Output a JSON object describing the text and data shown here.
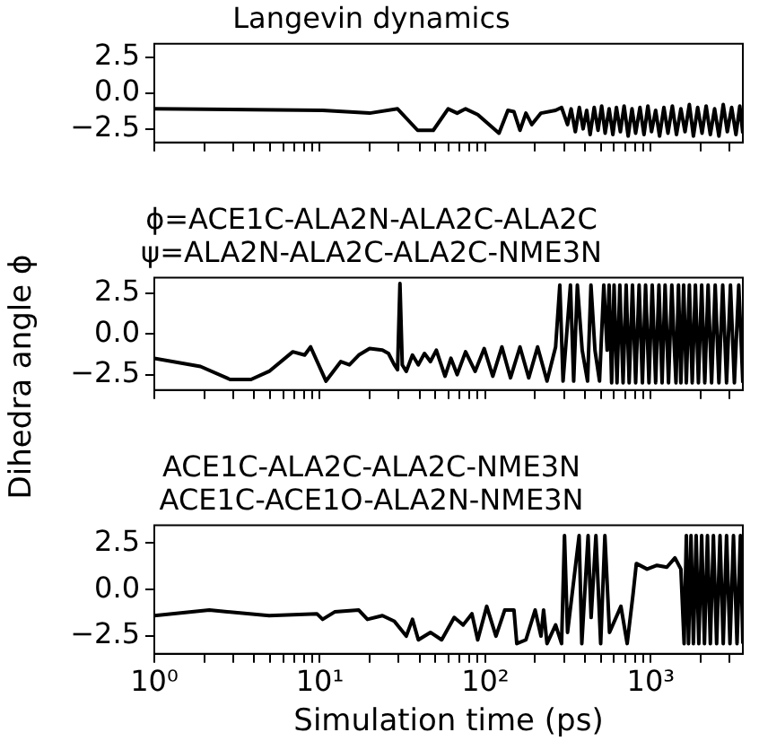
{
  "chart_data": [
    {
      "type": "line",
      "title": "Langevin dynamics",
      "tick_labels": "y",
      "grid": false,
      "legend": false,
      "marker": "none",
      "line_style": "solid",
      "log": "x",
      "xlim": [
        1,
        3600
      ],
      "ylim": [
        -3.45,
        3.45
      ],
      "xticks": [
        {
          "value": 1,
          "label": null
        },
        {
          "value": 2,
          "label": null
        },
        {
          "value": 3,
          "label": null
        },
        {
          "value": 4,
          "label": null
        },
        {
          "value": 5,
          "label": null
        },
        {
          "value": 6,
          "label": null
        },
        {
          "value": 7,
          "label": null
        },
        {
          "value": 8,
          "label": null
        },
        {
          "value": 9,
          "label": null
        },
        {
          "value": 10,
          "label": null
        },
        {
          "value": 20,
          "label": null
        },
        {
          "value": 30,
          "label": null
        },
        {
          "value": 40,
          "label": null
        },
        {
          "value": 50,
          "label": null
        },
        {
          "value": 60,
          "label": null
        },
        {
          "value": 70,
          "label": null
        },
        {
          "value": 80,
          "label": null
        },
        {
          "value": 90,
          "label": null
        },
        {
          "value": 100,
          "label": null
        },
        {
          "value": 200,
          "label": null
        },
        {
          "value": 300,
          "label": null
        },
        {
          "value": 400,
          "label": null
        },
        {
          "value": 500,
          "label": null
        },
        {
          "value": 600,
          "label": null
        },
        {
          "value": 700,
          "label": null
        },
        {
          "value": 800,
          "label": null
        },
        {
          "value": 900,
          "label": null
        },
        {
          "value": 1000,
          "label": null
        },
        {
          "value": 2000,
          "label": null
        },
        {
          "value": 3000,
          "label": null
        }
      ],
      "yticks": [
        {
          "value": -2.5,
          "label": "−2.5"
        },
        {
          "value": 0,
          "label": "0.0"
        },
        {
          "value": 2.5,
          "label": "2.5"
        }
      ],
      "series": [
        {
          "color": "#000000",
          "x": [
            1,
            10.4,
            20,
            29.5,
            39,
            48.5,
            59.6,
            67.6,
            76,
            90,
            121,
            137,
            149,
            162,
            176,
            191,
            217,
            266,
            289,
            314,
            330,
            350,
            370,
            390,
            410,
            430,
            455,
            480,
            505,
            530,
            560,
            590,
            620,
            655,
            690,
            730,
            770,
            810,
            860,
            910,
            960,
            1010,
            1070,
            1130,
            1200,
            1270,
            1350,
            1430,
            1520,
            1610,
            1710,
            1810,
            1920,
            2040,
            2160,
            2290,
            2430,
            2580,
            2740,
            2900,
            3080,
            3270,
            3450,
            3600
          ],
          "values": [
            -1.1,
            -1.2,
            -1.4,
            -1.1,
            -2.6,
            -2.6,
            -1.1,
            -1.4,
            -1.1,
            -1.5,
            -2.8,
            -1.2,
            -1.3,
            -2.6,
            -1.4,
            -2.2,
            -1.4,
            -1.2,
            -1.0,
            -2.2,
            -1.1,
            -2.7,
            -1.0,
            -2.5,
            -1.2,
            -2.9,
            -1.0,
            -2.6,
            -0.9,
            -2.8,
            -1.1,
            -2.9,
            -1.0,
            -2.7,
            -0.9,
            -3.0,
            -1.1,
            -2.8,
            -1.0,
            -2.9,
            -0.9,
            -2.7,
            -1.2,
            -3.0,
            -1.0,
            -2.8,
            -0.9,
            -2.9,
            -1.1,
            -2.7,
            -0.8,
            -3.0,
            -1.0,
            -2.8,
            -0.9,
            -2.9,
            -1.1,
            -3.0,
            -0.8,
            -2.7,
            -1.0,
            -2.9,
            -0.9,
            -2.8
          ]
        }
      ]
    },
    {
      "type": "line",
      "title": "ϕ=ACE1C-ALA2N-ALA2C-ALA2C\nψ=ALA2N-ALA2C-ALA2C-NME3N",
      "ylabel": "Dihedra angle ϕ",
      "tick_labels": "y",
      "grid": false,
      "legend": false,
      "marker": "none",
      "line_style": "solid",
      "log": "x",
      "xlim": [
        1,
        3600
      ],
      "ylim": [
        -3.45,
        3.45
      ],
      "xticks": [
        {
          "value": 1,
          "label": null
        },
        {
          "value": 2,
          "label": null
        },
        {
          "value": 3,
          "label": null
        },
        {
          "value": 4,
          "label": null
        },
        {
          "value": 5,
          "label": null
        },
        {
          "value": 6,
          "label": null
        },
        {
          "value": 7,
          "label": null
        },
        {
          "value": 8,
          "label": null
        },
        {
          "value": 9,
          "label": null
        },
        {
          "value": 10,
          "label": null
        },
        {
          "value": 20,
          "label": null
        },
        {
          "value": 30,
          "label": null
        },
        {
          "value": 40,
          "label": null
        },
        {
          "value": 50,
          "label": null
        },
        {
          "value": 60,
          "label": null
        },
        {
          "value": 70,
          "label": null
        },
        {
          "value": 80,
          "label": null
        },
        {
          "value": 90,
          "label": null
        },
        {
          "value": 100,
          "label": null
        },
        {
          "value": 200,
          "label": null
        },
        {
          "value": 300,
          "label": null
        },
        {
          "value": 400,
          "label": null
        },
        {
          "value": 500,
          "label": null
        },
        {
          "value": 600,
          "label": null
        },
        {
          "value": 700,
          "label": null
        },
        {
          "value": 800,
          "label": null
        },
        {
          "value": 900,
          "label": null
        },
        {
          "value": 1000,
          "label": null
        },
        {
          "value": 2000,
          "label": null
        },
        {
          "value": 3000,
          "label": null
        }
      ],
      "yticks": [
        {
          "value": -2.5,
          "label": "−2.5"
        },
        {
          "value": 0,
          "label": "0.0"
        },
        {
          "value": 2.5,
          "label": "2.5"
        }
      ],
      "series": [
        {
          "color": "#000000",
          "x": [
            1,
            1.9,
            2.87,
            3.84,
            4.94,
            6.87,
            8.1,
            8.8,
            10.9,
            13.4,
            15.1,
            17.2,
            20,
            23.9,
            26,
            28.2,
            29.5,
            30.5,
            31.5,
            33.3,
            36.3,
            39.4,
            42.9,
            46.6,
            50.6,
            57.1,
            62,
            67.6,
            76,
            86.8,
            98.5,
            111,
            126,
            142,
            162,
            183,
            207,
            236,
            266,
            282,
            295,
            327,
            342,
            360,
            385,
            415,
            435,
            460,
            490,
            520,
            545,
            560,
            580,
            600,
            625,
            650,
            680,
            710,
            740,
            775,
            810,
            850,
            890,
            930,
            975,
            1020,
            1070,
            1120,
            1170,
            1220,
            1280,
            1340,
            1380,
            1420,
            1470,
            1520,
            1580,
            1640,
            1710,
            1780,
            1860,
            1940,
            2030,
            2120,
            2220,
            2330,
            2450,
            2580,
            2720,
            2870,
            3030,
            3200,
            3400,
            3600
          ],
          "values": [
            -1.5,
            -2.0,
            -2.8,
            -2.8,
            -2.3,
            -1.1,
            -1.3,
            -0.8,
            -2.9,
            -1.7,
            -1.9,
            -1.3,
            -0.9,
            -1.0,
            -1.2,
            -1.9,
            -2.2,
            3.1,
            -1.9,
            -2.3,
            -1.3,
            -1.9,
            -1.2,
            -1.7,
            -1.0,
            -2.6,
            -1.5,
            -2.5,
            -1.1,
            -2.3,
            -0.9,
            -2.6,
            -0.8,
            -2.7,
            -0.8,
            -2.7,
            -0.8,
            -2.9,
            -0.8,
            3.0,
            -2.9,
            3.0,
            -2.9,
            3.0,
            -1.0,
            -2.9,
            3.0,
            -1.0,
            -2.9,
            3.0,
            -1.0,
            3.0,
            -3.0,
            3.0,
            -3.0,
            3.0,
            -3.0,
            3.0,
            -3.0,
            3.0,
            -3.0,
            3.0,
            -3.0,
            3.0,
            -3.0,
            3.0,
            -3.0,
            3.0,
            -3.0,
            3.0,
            -3.0,
            3.0,
            -0.3,
            -3.0,
            3.0,
            -3.0,
            3.0,
            -3.0,
            3.0,
            -3.0,
            3.0,
            -3.0,
            3.0,
            -3.0,
            3.0,
            -3.0,
            3.0,
            -3.0,
            3.0,
            -3.0,
            3.0,
            -3.0,
            3.0,
            -3.0
          ]
        }
      ]
    },
    {
      "type": "line",
      "title": "ACE1C-ALA2C-ALA2C-NME3N\nACE1C-ACE1O-ALA2N-NME3N",
      "xlabel": "Simulation time (ps)",
      "grid": false,
      "legend": false,
      "marker": "none",
      "line_style": "solid",
      "log": "x",
      "xlim": [
        1,
        3600
      ],
      "ylim": [
        -3.45,
        3.45
      ],
      "xticks": [
        {
          "value": 1,
          "label": "10⁰"
        },
        {
          "value": 2,
          "label": null
        },
        {
          "value": 3,
          "label": null
        },
        {
          "value": 4,
          "label": null
        },
        {
          "value": 5,
          "label": null
        },
        {
          "value": 6,
          "label": null
        },
        {
          "value": 7,
          "label": null
        },
        {
          "value": 8,
          "label": null
        },
        {
          "value": 9,
          "label": null
        },
        {
          "value": 10,
          "label": "10¹"
        },
        {
          "value": 20,
          "label": null
        },
        {
          "value": 30,
          "label": null
        },
        {
          "value": 40,
          "label": null
        },
        {
          "value": 50,
          "label": null
        },
        {
          "value": 60,
          "label": null
        },
        {
          "value": 70,
          "label": null
        },
        {
          "value": 80,
          "label": null
        },
        {
          "value": 90,
          "label": null
        },
        {
          "value": 100,
          "label": "10²"
        },
        {
          "value": 200,
          "label": null
        },
        {
          "value": 300,
          "label": null
        },
        {
          "value": 400,
          "label": null
        },
        {
          "value": 500,
          "label": null
        },
        {
          "value": 600,
          "label": null
        },
        {
          "value": 700,
          "label": null
        },
        {
          "value": 800,
          "label": null
        },
        {
          "value": 900,
          "label": null
        },
        {
          "value": 1000,
          "label": "10³"
        },
        {
          "value": 2000,
          "label": null
        },
        {
          "value": 3000,
          "label": null
        }
      ],
      "yticks": [
        {
          "value": -2.5,
          "label": "−2.5"
        },
        {
          "value": 0,
          "label": "0.0"
        },
        {
          "value": 2.5,
          "label": "2.5"
        }
      ],
      "series": [
        {
          "color": "#000000",
          "x": [
            1,
            2.15,
            4.94,
            9.6,
            10.4,
            12.3,
            17.2,
            19.4,
            23.9,
            28.2,
            33.3,
            36.3,
            39.4,
            46.6,
            54.5,
            64.9,
            73.5,
            83,
            90,
            102,
            116,
            131,
            149,
            155,
            176,
            200,
            217,
            225,
            236,
            266,
            289,
            301,
            314,
            369,
            383,
            418,
            436,
            466,
            498,
            528,
            563,
            660,
            720,
            780,
            818,
            950,
            1090,
            1250,
            1400,
            1520,
            1590,
            1640,
            1690,
            1750,
            1810,
            1880,
            1950,
            2030,
            2110,
            2200,
            2290,
            2390,
            2500,
            2620,
            2740,
            2870,
            3010,
            3160,
            3320,
            3480,
            3600
          ],
          "values": [
            -1.4,
            -1.1,
            -1.4,
            -1.3,
            -1.6,
            -1.2,
            -1.1,
            -1.6,
            -1.4,
            -1.7,
            -2.5,
            -1.6,
            -2.7,
            -2.3,
            -2.7,
            -1.5,
            -1.9,
            -1.3,
            -2.7,
            -0.9,
            -2.5,
            -1.1,
            -1.1,
            -2.9,
            -2.7,
            -1.1,
            -2.5,
            -1.1,
            -2.9,
            -1.9,
            -2.9,
            2.9,
            -2.3,
            2.9,
            -2.9,
            2.9,
            -1.5,
            2.9,
            -2.9,
            2.9,
            -2.3,
            -0.9,
            -2.9,
            -0.3,
            1.4,
            1.1,
            1.3,
            1.2,
            1.7,
            1.1,
            -2.9,
            2.9,
            -2.9,
            2.9,
            -2.9,
            2.9,
            -2.9,
            2.9,
            -2.9,
            2.9,
            -2.9,
            2.9,
            -2.9,
            2.9,
            -2.9,
            2.9,
            -2.9,
            2.9,
            -2.9,
            2.9,
            -2.9
          ]
        }
      ]
    }
  ]
}
